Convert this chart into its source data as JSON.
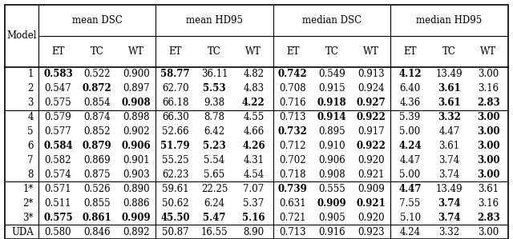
{
  "col_groups": [
    "mean DSC",
    "mean HD95",
    "median DSC",
    "median HD95"
  ],
  "sub_cols": [
    "ET",
    "TC",
    "WT"
  ],
  "models": [
    "1",
    "2",
    "3",
    "4",
    "5",
    "6",
    "7",
    "8",
    "1*",
    "2*",
    "3*",
    "UDA"
  ],
  "data": {
    "mean_DSC": {
      "1": [
        "0.583",
        "0.522",
        "0.900"
      ],
      "2": [
        "0.547",
        "0.872",
        "0.897"
      ],
      "3": [
        "0.575",
        "0.854",
        "0.908"
      ],
      "4": [
        "0.579",
        "0.874",
        "0.898"
      ],
      "5": [
        "0.577",
        "0.852",
        "0.902"
      ],
      "6": [
        "0.584",
        "0.879",
        "0.906"
      ],
      "7": [
        "0.582",
        "0.869",
        "0.901"
      ],
      "8": [
        "0.574",
        "0.875",
        "0.903"
      ],
      "1*": [
        "0.571",
        "0.526",
        "0.890"
      ],
      "2*": [
        "0.511",
        "0.855",
        "0.886"
      ],
      "3*": [
        "0.575",
        "0.861",
        "0.909"
      ],
      "UDA": [
        "0.580",
        "0.846",
        "0.892"
      ]
    },
    "mean_HD95": {
      "1": [
        "58.77",
        "36.11",
        "4.82"
      ],
      "2": [
        "62.70",
        "5.53",
        "4.83"
      ],
      "3": [
        "66.18",
        "9.38",
        "4.22"
      ],
      "4": [
        "66.30",
        "8.78",
        "4.55"
      ],
      "5": [
        "52.66",
        "6.42",
        "4.66"
      ],
      "6": [
        "51.79",
        "5.23",
        "4.26"
      ],
      "7": [
        "55.25",
        "5.54",
        "4.31"
      ],
      "8": [
        "62.23",
        "5.65",
        "4.54"
      ],
      "1*": [
        "59.61",
        "22.25",
        "7.07"
      ],
      "2*": [
        "50.62",
        "6.24",
        "5.37"
      ],
      "3*": [
        "45.50",
        "5.47",
        "5.16"
      ],
      "UDA": [
        "50.87",
        "16.55",
        "8.90"
      ]
    },
    "median_DSC": {
      "1": [
        "0.742",
        "0.549",
        "0.913"
      ],
      "2": [
        "0.708",
        "0.915",
        "0.924"
      ],
      "3": [
        "0.716",
        "0.918",
        "0.927"
      ],
      "4": [
        "0.713",
        "0.914",
        "0.922"
      ],
      "5": [
        "0.732",
        "0.895",
        "0.917"
      ],
      "6": [
        "0.712",
        "0.910",
        "0.922"
      ],
      "7": [
        "0.702",
        "0.906",
        "0.920"
      ],
      "8": [
        "0.718",
        "0.908",
        "0.921"
      ],
      "1*": [
        "0.739",
        "0.555",
        "0.909"
      ],
      "2*": [
        "0.631",
        "0.909",
        "0.921"
      ],
      "3*": [
        "0.721",
        "0.905",
        "0.920"
      ],
      "UDA": [
        "0.713",
        "0.916",
        "0.923"
      ]
    },
    "median_HD95": {
      "1": [
        "4.12",
        "13.49",
        "3.00"
      ],
      "2": [
        "6.40",
        "3.61",
        "3.16"
      ],
      "3": [
        "4.36",
        "3.61",
        "2.83"
      ],
      "4": [
        "5.39",
        "3.32",
        "3.00"
      ],
      "5": [
        "5.00",
        "4.47",
        "3.00"
      ],
      "6": [
        "4.24",
        "3.61",
        "3.00"
      ],
      "7": [
        "4.47",
        "3.74",
        "3.00"
      ],
      "8": [
        "5.00",
        "3.74",
        "3.00"
      ],
      "1*": [
        "4.47",
        "13.49",
        "3.61"
      ],
      "2*": [
        "7.55",
        "3.74",
        "3.16"
      ],
      "3*": [
        "5.10",
        "3.74",
        "2.83"
      ],
      "UDA": [
        "4.24",
        "3.32",
        "3.00"
      ]
    }
  },
  "bold": {
    "mean_DSC": {
      "1": [
        true,
        false,
        false
      ],
      "2": [
        false,
        true,
        false
      ],
      "3": [
        false,
        false,
        true
      ],
      "4": [
        false,
        false,
        false
      ],
      "5": [
        false,
        false,
        false
      ],
      "6": [
        true,
        true,
        true
      ],
      "7": [
        false,
        false,
        false
      ],
      "8": [
        false,
        false,
        false
      ],
      "1*": [
        false,
        false,
        false
      ],
      "2*": [
        false,
        false,
        false
      ],
      "3*": [
        true,
        true,
        true
      ],
      "UDA": [
        false,
        false,
        false
      ]
    },
    "mean_HD95": {
      "1": [
        true,
        false,
        false
      ],
      "2": [
        false,
        true,
        false
      ],
      "3": [
        false,
        false,
        true
      ],
      "4": [
        false,
        false,
        false
      ],
      "5": [
        false,
        false,
        false
      ],
      "6": [
        true,
        true,
        true
      ],
      "7": [
        false,
        false,
        false
      ],
      "8": [
        false,
        false,
        false
      ],
      "1*": [
        false,
        false,
        false
      ],
      "2*": [
        false,
        false,
        false
      ],
      "3*": [
        true,
        true,
        true
      ],
      "UDA": [
        false,
        false,
        false
      ]
    },
    "median_DSC": {
      "1": [
        true,
        false,
        false
      ],
      "2": [
        false,
        false,
        false
      ],
      "3": [
        false,
        true,
        true
      ],
      "4": [
        false,
        true,
        true
      ],
      "5": [
        true,
        false,
        false
      ],
      "6": [
        false,
        false,
        true
      ],
      "7": [
        false,
        false,
        false
      ],
      "8": [
        false,
        false,
        false
      ],
      "1*": [
        true,
        false,
        false
      ],
      "2*": [
        false,
        true,
        true
      ],
      "3*": [
        false,
        false,
        false
      ],
      "UDA": [
        false,
        false,
        false
      ]
    },
    "median_HD95": {
      "1": [
        true,
        false,
        false
      ],
      "2": [
        false,
        true,
        false
      ],
      "3": [
        false,
        true,
        true
      ],
      "4": [
        false,
        true,
        true
      ],
      "5": [
        false,
        false,
        true
      ],
      "6": [
        true,
        false,
        true
      ],
      "7": [
        false,
        false,
        true
      ],
      "8": [
        false,
        false,
        true
      ],
      "1*": [
        true,
        false,
        false
      ],
      "2*": [
        false,
        true,
        false
      ],
      "3*": [
        false,
        true,
        true
      ],
      "UDA": [
        false,
        false,
        false
      ]
    }
  },
  "group_separators": [
    3,
    8,
    11
  ],
  "background_color": "#ffffff",
  "font_size": 8.5
}
